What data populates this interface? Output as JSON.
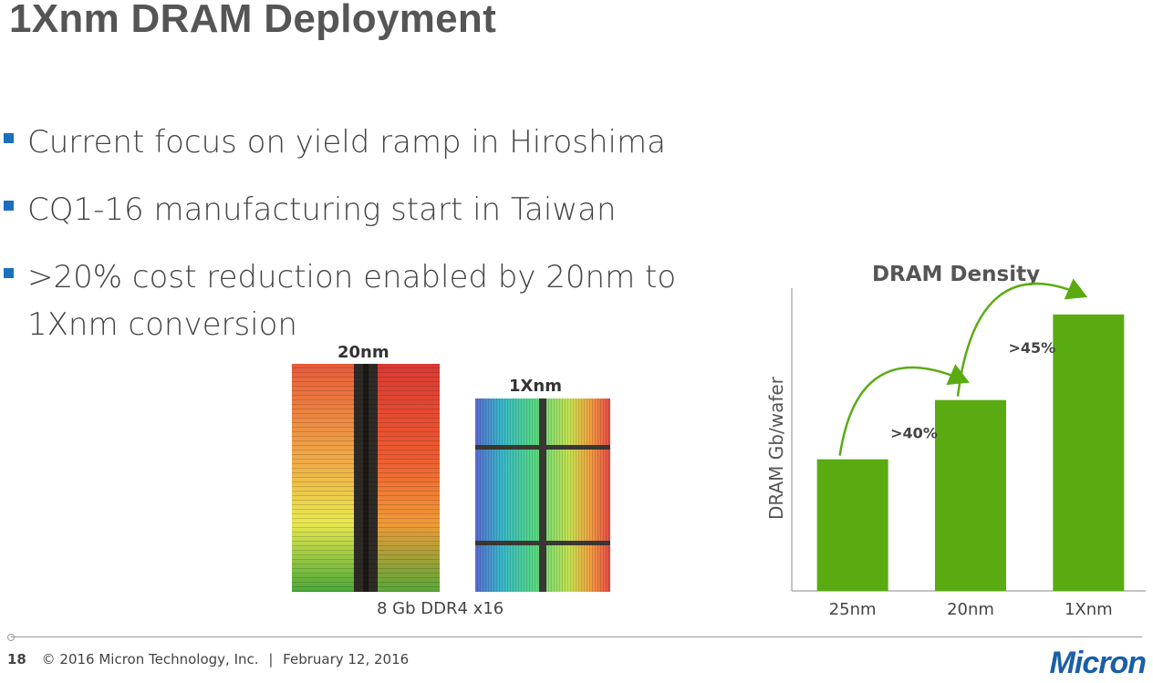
{
  "slide": {
    "title": "1Xnm DRAM Deployment",
    "bullets": [
      "Current focus on yield ramp in Hiroshima",
      "CQ1-16 manufacturing start in Taiwan",
      ">20% cost reduction enabled by 20nm to 1Xnm conversion"
    ]
  },
  "die_images": {
    "left_label": "20nm",
    "right_label": "1Xnm",
    "caption": "8 Gb DDR4 x16"
  },
  "chart_data": {
    "type": "bar",
    "title": "DRAM Density",
    "ylabel": "DRAM Gb/wafer",
    "xlabel": "",
    "categories": [
      "25nm",
      "20nm",
      "1Xnm"
    ],
    "values": [
      1.0,
      1.45,
      2.1
    ],
    "ylim": [
      0,
      2.3
    ],
    "grid": false,
    "color": "#5aab12",
    "annotations": [
      ">40%",
      ">45%"
    ]
  },
  "footer": {
    "page_number": "18",
    "copyright": "© 2016 Micron Technology, Inc.",
    "separator": "|",
    "date": "February 12, 2016",
    "logo_text": "Micron"
  },
  "colors": {
    "bullet": "#1a6fbf",
    "bar": "#5aab12",
    "arrow": "#5aab12",
    "title": "#555555"
  }
}
